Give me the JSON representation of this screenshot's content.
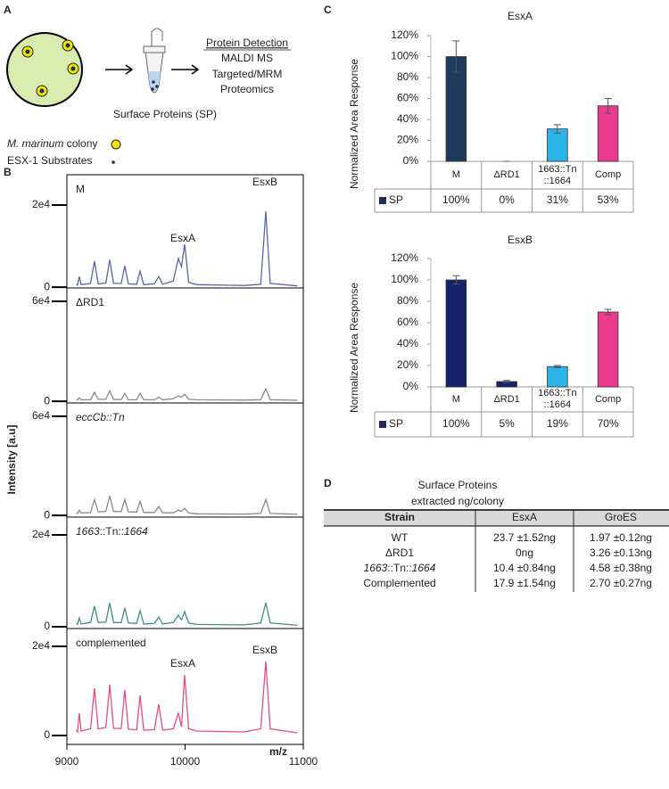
{
  "panel_labels": [
    "A",
    "B",
    "C",
    "D"
  ],
  "panel_a": {
    "detection_title": "Protein Detection",
    "detection_lines": [
      "MALDI MS",
      "Targeted/MRM",
      "Proteomics"
    ],
    "sample_label": "Surface Proteins (SP)",
    "legend": {
      "colony_species": "M. marinum",
      "colony_text": "colony",
      "substrates": "ESX-1 Substrates"
    }
  },
  "chart_data": [
    {
      "type": "spectra",
      "xlabel": "m/z",
      "ylabel": "Intensity [a.u]",
      "xlim": [
        9000,
        11000
      ],
      "xticks": [
        9000,
        10000,
        11000
      ],
      "x": [
        9080,
        9090,
        9105,
        9120,
        9200,
        9233,
        9265,
        9330,
        9362,
        9395,
        9460,
        9490,
        9520,
        9590,
        9619,
        9650,
        9740,
        9777,
        9810,
        9900,
        9943,
        9970,
        9996,
        10030,
        10100,
        10500,
        10640,
        10683,
        10720,
        10950
      ],
      "panels": [
        {
          "name": "M",
          "color": "#5b64a8",
          "labels": [
            "EsxA",
            "EsxB"
          ],
          "ylim": [
            -200,
            27400
          ],
          "yticks": [
            0,
            {
              "value": 20000,
              "label": "2e4"
            }
          ],
          "values": [
            800,
            500,
            2600,
            600,
            900,
            6300,
            800,
            1000,
            6700,
            900,
            900,
            5200,
            800,
            700,
            3900,
            600,
            800,
            2600,
            700,
            1500,
            7000,
            5000,
            10400,
            1200,
            600,
            400,
            700,
            18500,
            900,
            300
          ]
        },
        {
          "name": "ΔRD1",
          "color": "#8a8a8a",
          "labels": [],
          "ylim": [
            -1000,
            68000
          ],
          "yticks": [
            0,
            {
              "value": 60000,
              "label": "6e4"
            }
          ],
          "values": [
            1000,
            800,
            2100,
            900,
            1000,
            5300,
            1200,
            1200,
            6400,
            1100,
            1100,
            4800,
            1000,
            900,
            4800,
            900,
            900,
            2500,
            900,
            1500,
            3200,
            2500,
            4300,
            1200,
            900,
            700,
            1000,
            7500,
            1000,
            600
          ]
        },
        {
          "name": "eccCb::Tn",
          "color": "#8a8a8a",
          "labels": [],
          "ylim": [
            -1000,
            68000
          ],
          "yticks": [
            0,
            {
              "value": 60000,
              "label": "6e4"
            }
          ],
          "values": [
            1500,
            1200,
            3200,
            1500,
            1800,
            9600,
            2200,
            2500,
            11800,
            2400,
            2400,
            9600,
            2200,
            2000,
            8600,
            1800,
            1800,
            5400,
            1600,
            1600,
            3200,
            2500,
            4300,
            1500,
            1000,
            800,
            1200,
            9600,
            1200,
            700
          ]
        },
        {
          "name": [
            "1663",
            "::Tn::",
            "1664"
          ],
          "color": "#3d8f8a",
          "labels": [],
          "ylim": [
            -400,
            23900
          ],
          "yticks": [
            0,
            {
              "value": 20000,
              "label": "2e4"
            }
          ],
          "values": [
            700,
            500,
            1900,
            600,
            900,
            4500,
            900,
            1000,
            5200,
            900,
            900,
            4100,
            800,
            700,
            3500,
            600,
            700,
            2100,
            600,
            900,
            2500,
            1500,
            3300,
            800,
            500,
            400,
            800,
            5200,
            800,
            300
          ]
        },
        {
          "name": "complemented",
          "color": "#e8488a",
          "labels": [
            "EsxA",
            "EsxB"
          ],
          "ylim": [
            -2000,
            24000
          ],
          "yticks": [
            0,
            {
              "value": 20000,
              "label": "2e4"
            }
          ],
          "values": [
            1200,
            800,
            5000,
            1000,
            1500,
            10600,
            1500,
            1800,
            11400,
            1600,
            1600,
            10200,
            1400,
            1300,
            9000,
            1200,
            1300,
            7000,
            1200,
            1500,
            5000,
            2000,
            13600,
            1500,
            1000,
            800,
            1500,
            16600,
            1500,
            600
          ]
        }
      ]
    },
    {
      "type": "bar",
      "title": "EsxA",
      "ylabel": "Normalized Area Response",
      "categories": [
        "M",
        "ΔRD1",
        "1663::Tn\n::1664",
        "Comp"
      ],
      "ylim": [
        0,
        120
      ],
      "yticks": [
        {
          "value": 0,
          "label": "0%"
        },
        {
          "value": 20,
          "label": "20%"
        },
        {
          "value": 40,
          "label": "40%"
        },
        {
          "value": 60,
          "label": "60%"
        },
        {
          "value": 80,
          "label": "80%"
        },
        {
          "value": 100,
          "label": "100%"
        },
        {
          "value": 120,
          "label": "120%"
        }
      ],
      "series": [
        {
          "name": "SP",
          "color": "#1f2d5c",
          "colors": [
            "#1f3a5f",
            "#1f3a5f",
            "#29b5e8",
            "#ec3a8c"
          ],
          "values": [
            100,
            0,
            31,
            53
          ],
          "value_labels": [
            "100%",
            "0%",
            "31%",
            "53%"
          ],
          "errors": [
            15,
            0,
            4,
            7
          ]
        }
      ]
    },
    {
      "type": "bar",
      "title": "EsxB",
      "ylabel": "Normalized Area Response",
      "categories": [
        "M",
        "ΔRD1",
        "1663::Tn\n::1664",
        "Comp"
      ],
      "ylim": [
        0,
        120
      ],
      "yticks": [
        {
          "value": 0,
          "label": "0%"
        },
        {
          "value": 20,
          "label": "20%"
        },
        {
          "value": 40,
          "label": "40%"
        },
        {
          "value": 60,
          "label": "60%"
        },
        {
          "value": 80,
          "label": "80%"
        },
        {
          "value": 100,
          "label": "100%"
        },
        {
          "value": 120,
          "label": "120%"
        }
      ],
      "series": [
        {
          "name": "SP",
          "color": "#1f2d5c",
          "colors": [
            "#14226b",
            "#14226b",
            "#29b5e8",
            "#ec3a8c"
          ],
          "values": [
            100,
            5,
            19,
            70
          ],
          "value_labels": [
            "100%",
            "5%",
            "19%",
            "70%"
          ],
          "errors": [
            4,
            1,
            1,
            2.5
          ]
        }
      ]
    }
  ],
  "table": {
    "title": "Surface Proteins",
    "subtitle": "extracted ng/colony",
    "header": [
      "Strain",
      "EsxA",
      "GroES"
    ],
    "rows": [
      [
        "WT",
        "23.7 ±1.52ng",
        "1.97 ±0.12ng"
      ],
      [
        "ΔRD1",
        "0ng",
        "3.26 ±0.13ng"
      ],
      [
        [
          "1663",
          "::Tn::",
          "1664"
        ],
        "10.4 ±0.84ng",
        "4.58 ±0.38ng"
      ],
      [
        "Complemented",
        "17.9 ±1.54ng",
        "2.70 ±0.27ng"
      ]
    ]
  }
}
